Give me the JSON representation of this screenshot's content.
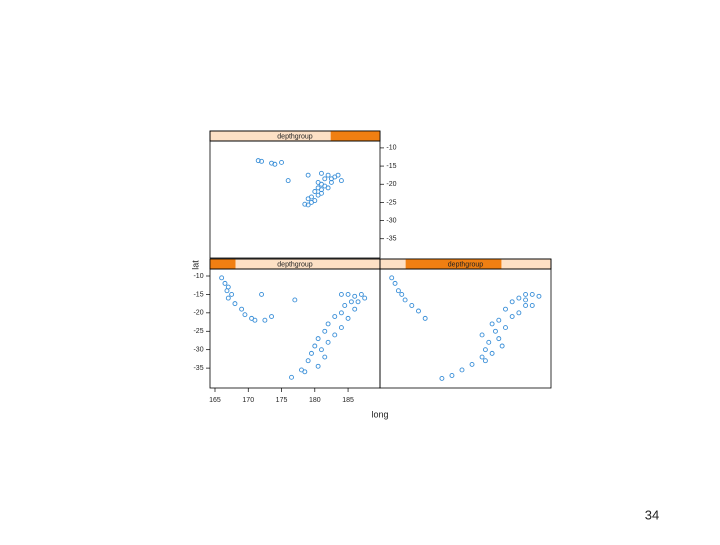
{
  "page_number": "34",
  "chart_data": [
    {
      "type": "scatter",
      "strip": "depthgroup",
      "color": "#3a8fd8",
      "x": [
        171.5,
        172,
        173.5,
        174,
        175,
        176,
        179,
        181,
        182,
        183,
        184,
        181.5,
        182.5,
        181,
        180.5,
        181,
        180,
        180.5,
        179.5,
        179,
        179.5,
        178.5,
        181.5,
        182,
        180,
        182.5,
        183.5,
        180.5,
        181,
        179
      ],
      "y": [
        -13.5,
        -13.7,
        -14.2,
        -14.5,
        -14,
        -19,
        -17.5,
        -17,
        -17.5,
        -18,
        -19,
        -18.5,
        -19.5,
        -20,
        -21,
        -21.5,
        -22,
        -23,
        -23.5,
        -24,
        -25,
        -25.5,
        -20.5,
        -21,
        -24.5,
        -18.5,
        -17.5,
        -19.5,
        -22.5,
        -25.7
      ],
      "xlim": [
        164.25,
        189.8
      ],
      "ylim": [
        -40.3,
        -8.1
      ],
      "yticks": [
        -10,
        -15,
        -20,
        -25,
        -30,
        -35
      ],
      "ytick_side": "right"
    },
    {
      "type": "scatter",
      "strip": "depthgroup",
      "color": "#3a8fd8",
      "xlabel": "long",
      "ylabel": "lat",
      "x": [
        166,
        166.5,
        167,
        166.8,
        167.5,
        167,
        168,
        169,
        169.5,
        170.5,
        171,
        172.5,
        173.5,
        172,
        177,
        184,
        185,
        186,
        187,
        185.5,
        184.5,
        186,
        184,
        183,
        185,
        182,
        184,
        181.5,
        183,
        180.5,
        182,
        180,
        181,
        179.5,
        181.5,
        179,
        180.5,
        178,
        176.5,
        178.5,
        186.5,
        187.5
      ],
      "y": [
        -10.5,
        -12,
        -13,
        -14,
        -15,
        -16,
        -17.5,
        -19,
        -20.5,
        -21.5,
        -22,
        -22,
        -21,
        -15,
        -16.5,
        -15,
        -15,
        -15.5,
        -15,
        -17,
        -18,
        -19,
        -20,
        -21,
        -21.5,
        -23,
        -24,
        -25,
        -26,
        -27,
        -28,
        -29,
        -30,
        -31,
        -32,
        -33,
        -34.5,
        -35.5,
        -37.5,
        -36,
        -17,
        -16
      ],
      "xlim": [
        164.25,
        189.8
      ],
      "ylim": [
        -40.4,
        -8.1
      ],
      "xticks": [
        165,
        170,
        175,
        180,
        185
      ],
      "yticks": [
        -10,
        -15,
        -20,
        -25,
        -30,
        -35
      ],
      "ytick_side": "left"
    },
    {
      "type": "scatter",
      "strip": "depthgroup",
      "color": "#3a8fd8",
      "x": [
        166,
        166.5,
        167,
        167.5,
        168,
        169,
        170,
        171,
        186,
        187,
        188,
        185,
        184,
        186,
        183,
        185,
        182,
        181,
        183,
        181.5,
        182,
        180.5,
        182.5,
        180,
        181,
        179.5,
        180,
        178,
        176.5,
        175,
        173.5,
        184,
        186,
        187,
        179.5
      ],
      "y": [
        -10.5,
        -12,
        -14,
        -15,
        -16.5,
        -18,
        -19.5,
        -21.5,
        -15,
        -15,
        -15.5,
        -16,
        -17,
        -18,
        -19,
        -20,
        -22,
        -23,
        -24,
        -25,
        -27,
        -28,
        -29,
        -30,
        -31,
        -32,
        -33,
        -34,
        -35.5,
        -37,
        -37.8,
        -21,
        -16.5,
        -18,
        -26
      ],
      "xlim": [
        164.25,
        189.8
      ],
      "ylim": [
        -40.4,
        -8.1
      ]
    }
  ]
}
